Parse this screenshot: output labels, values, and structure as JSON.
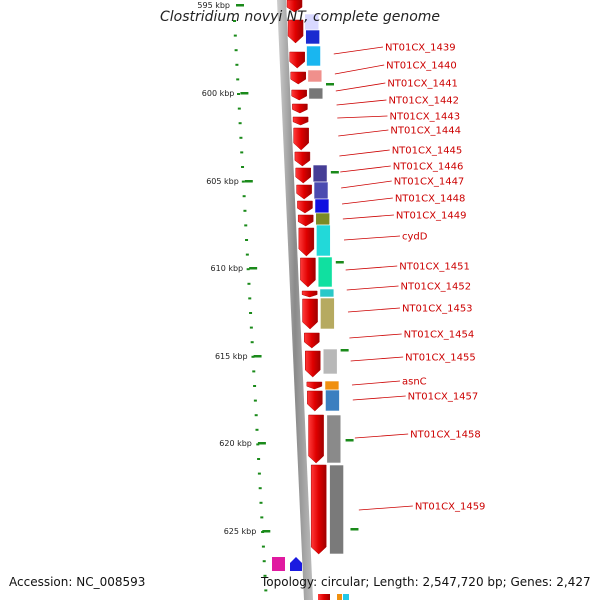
{
  "title": "Clostridium novyi NT, complete genome",
  "footer": {
    "accession": "Accession: NC_008593",
    "info": "Topology: circular; Length: 2,547,720 bp; Genes: 2,427"
  },
  "ticks": [
    "595 kbp",
    "600 kbp",
    "605 kbp",
    "610 kbp",
    "615 kbp",
    "620 kbp",
    "625 kbp"
  ],
  "labels": [
    "NT01CX_1439",
    "NT01CX_1440",
    "NT01CX_1441",
    "NT01CX_1442",
    "NT01CX_1443",
    "NT01CX_1444",
    "NT01CX_1445",
    "NT01CX_1446",
    "NT01CX_1447",
    "NT01CX_1448",
    "NT01CX_1449",
    "cydD",
    "NT01CX_1451",
    "NT01CX_1452",
    "NT01CX_1453",
    "NT01CX_1454",
    "NT01CX_1455",
    "asnC",
    "NT01CX_1457",
    "NT01CX_1458",
    "NT01CX_1459"
  ],
  "colors": {
    "gene_red": "#ee0000",
    "label_red": "#cc0000",
    "backbone": "#9a9a9a",
    "tick_green": "#1a8a1a"
  }
}
